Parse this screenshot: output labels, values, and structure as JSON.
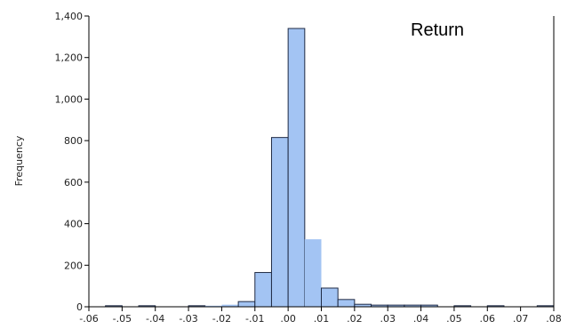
{
  "chart_data": {
    "type": "bar",
    "title": "",
    "xlabel": "",
    "ylabel": "Frequency",
    "legend": "Return",
    "legend_position": "top-right",
    "grid": false,
    "xlim": [
      -0.06,
      0.08
    ],
    "ylim": [
      0,
      1400
    ],
    "x_ticks": [
      -0.06,
      -0.05,
      -0.04,
      -0.03,
      -0.02,
      -0.01,
      0.0,
      0.01,
      0.02,
      0.03,
      0.04,
      0.05,
      0.06,
      0.07,
      0.08
    ],
    "x_tick_labels": [
      "-.06",
      "-.05",
      "-.04",
      "-.03",
      "-.02",
      "-.01",
      ".00",
      ".01",
      ".02",
      ".03",
      ".04",
      ".05",
      ".06",
      ".07",
      ".08"
    ],
    "y_ticks": [
      0,
      200,
      400,
      600,
      800,
      1000,
      1200,
      1400
    ],
    "y_tick_labels": [
      "0",
      "200",
      "400",
      "600",
      "800",
      "1,000",
      "1,200",
      "1,400"
    ],
    "bars": [
      {
        "x0": -0.055,
        "x1": -0.05,
        "value": 5
      },
      {
        "x0": -0.045,
        "x1": -0.04,
        "value": 5
      },
      {
        "x0": -0.03,
        "x1": -0.025,
        "value": 5
      },
      {
        "x0": -0.025,
        "x1": -0.02,
        "value": 5,
        "faint": true
      },
      {
        "x0": -0.02,
        "x1": -0.015,
        "value": 10,
        "faint": true
      },
      {
        "x0": -0.015,
        "x1": -0.01,
        "value": 25
      },
      {
        "x0": -0.01,
        "x1": -0.005,
        "value": 165
      },
      {
        "x0": -0.005,
        "x1": 0.0,
        "value": 815
      },
      {
        "x0": 0.0,
        "x1": 0.005,
        "value": 1340
      },
      {
        "x0": 0.005,
        "x1": 0.01,
        "value": 325,
        "faint": true
      },
      {
        "x0": 0.01,
        "x1": 0.015,
        "value": 90
      },
      {
        "x0": 0.015,
        "x1": 0.02,
        "value": 35
      },
      {
        "x0": 0.02,
        "x1": 0.025,
        "value": 12
      },
      {
        "x0": 0.025,
        "x1": 0.03,
        "value": 8
      },
      {
        "x0": 0.03,
        "x1": 0.035,
        "value": 8
      },
      {
        "x0": 0.035,
        "x1": 0.04,
        "value": 8
      },
      {
        "x0": 0.04,
        "x1": 0.045,
        "value": 8
      },
      {
        "x0": 0.05,
        "x1": 0.055,
        "value": 5
      },
      {
        "x0": 0.06,
        "x1": 0.065,
        "value": 5
      },
      {
        "x0": 0.075,
        "x1": 0.08,
        "value": 5
      }
    ],
    "colors": {
      "bar_fill": "#a3c4f3",
      "bar_stroke": "#1f2a44",
      "axis": "#000000"
    }
  }
}
